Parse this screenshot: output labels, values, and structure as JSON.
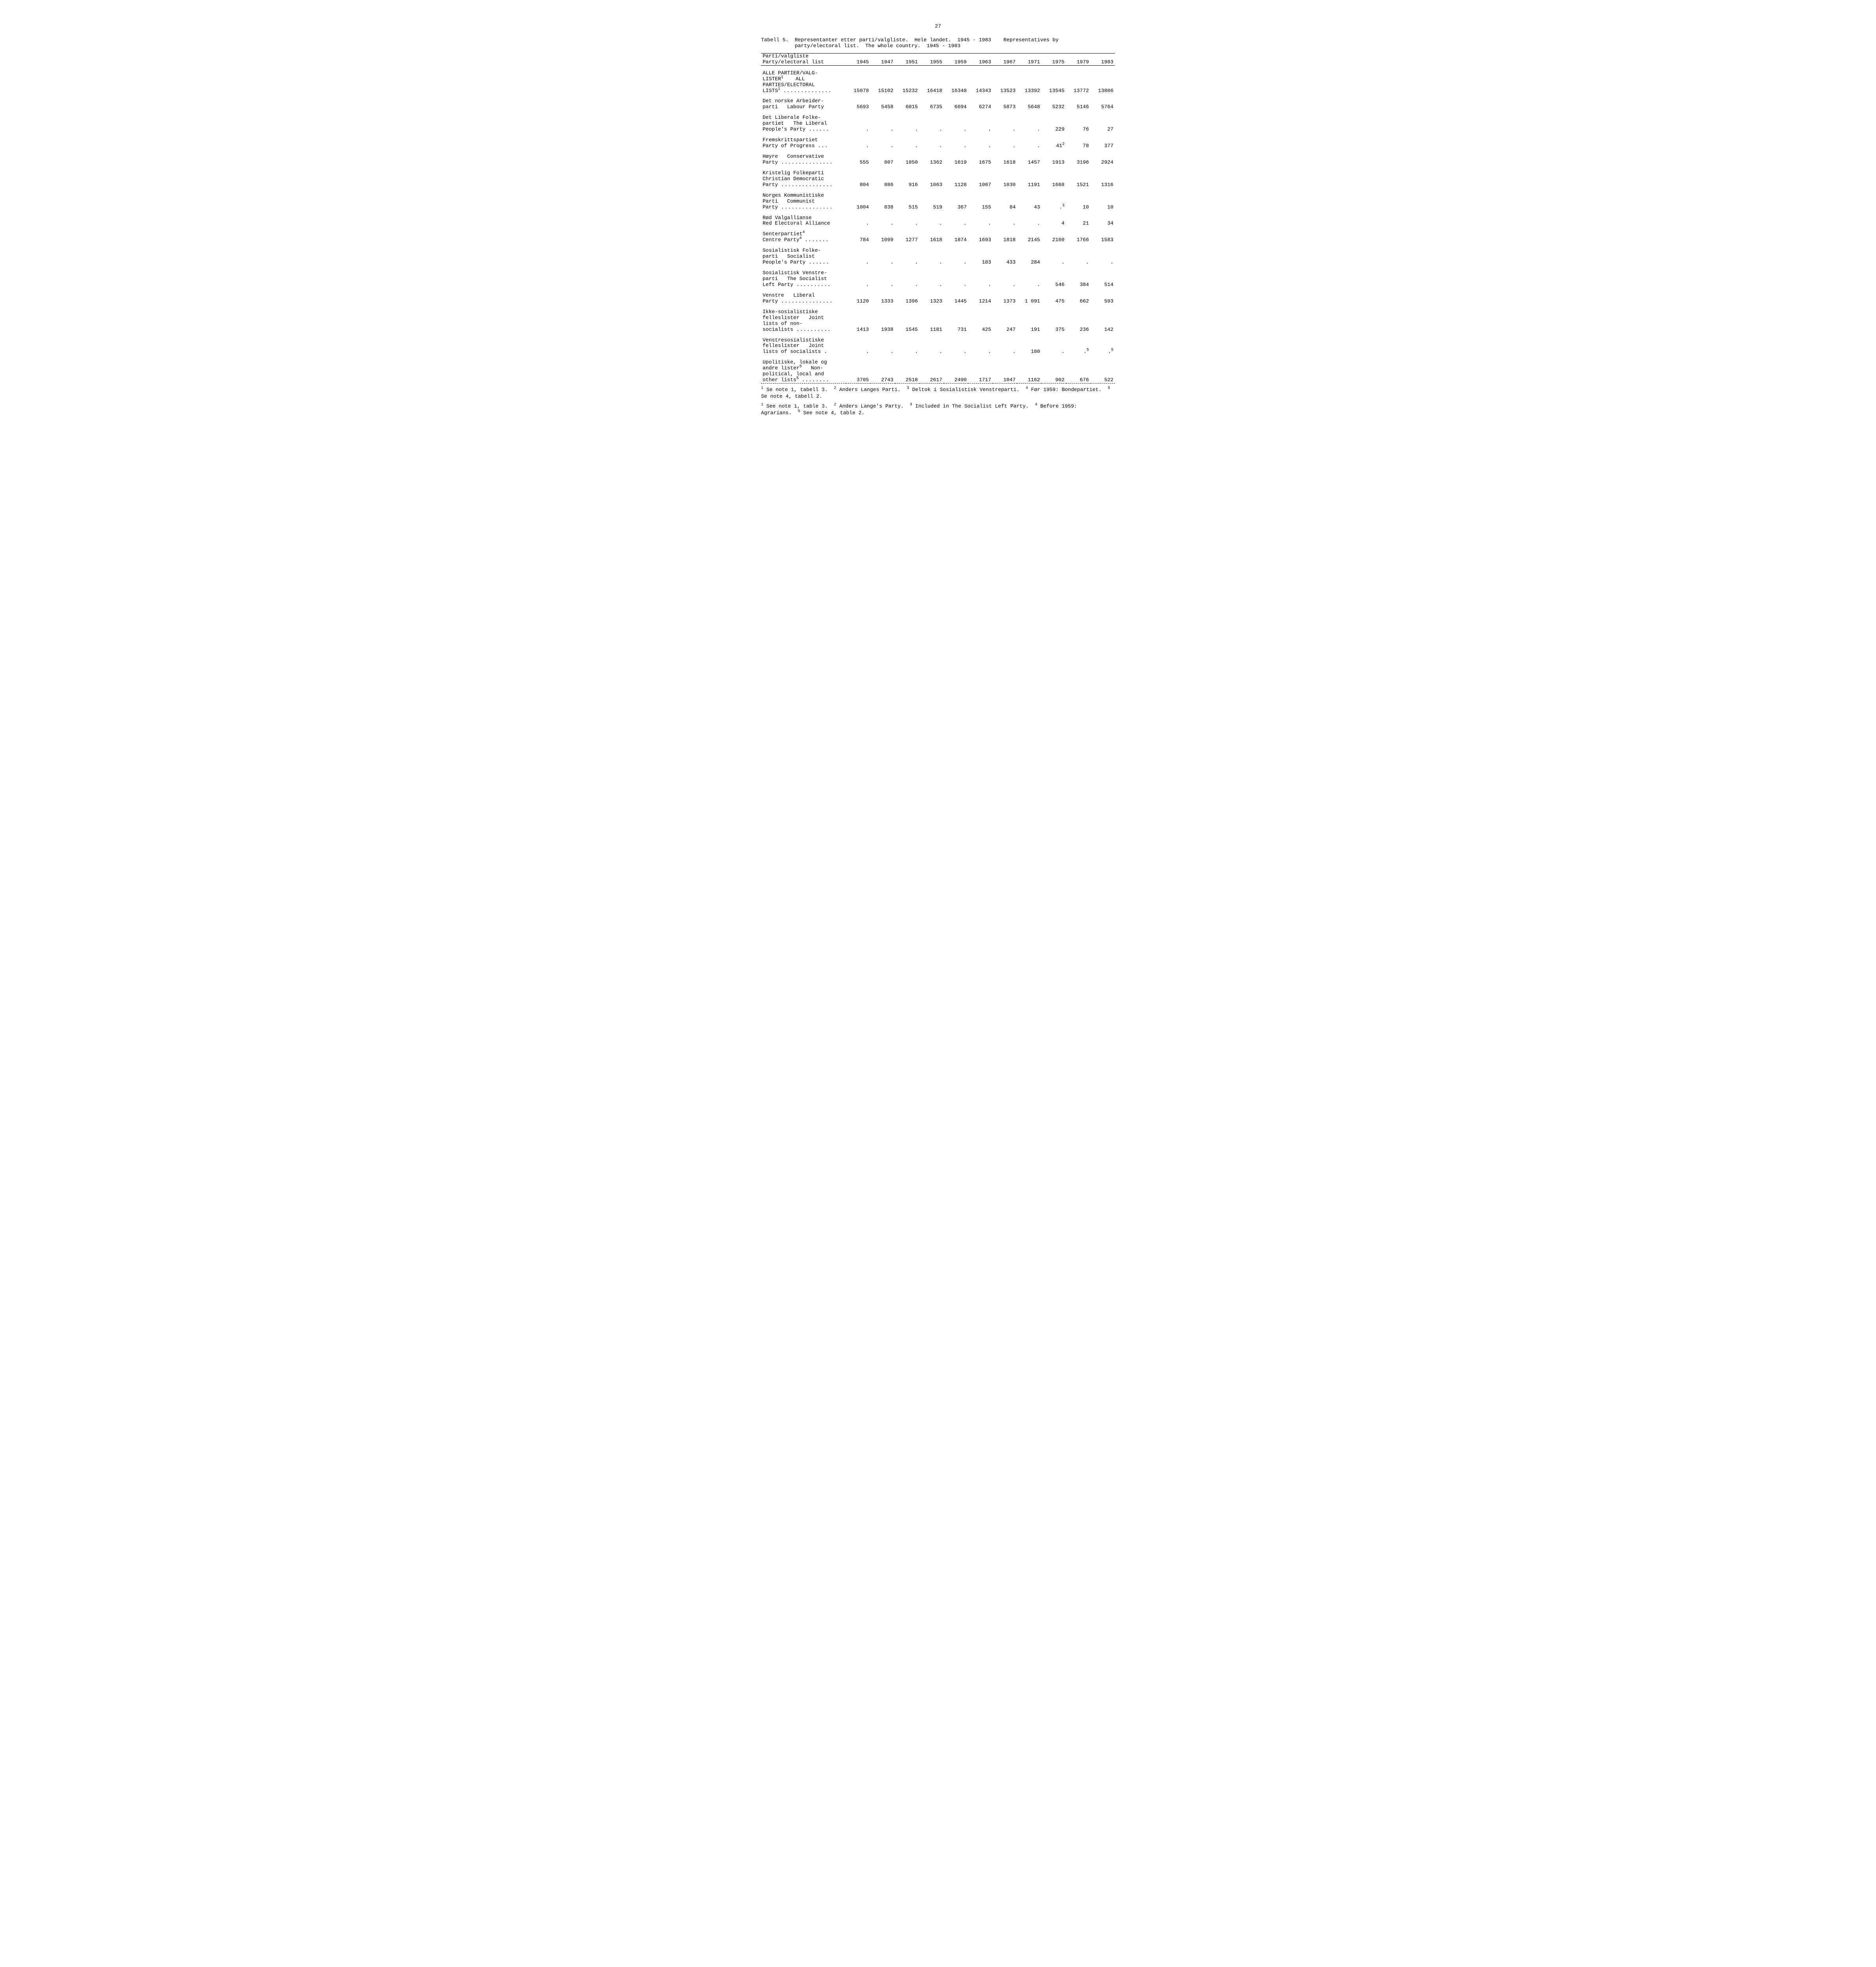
{
  "page_number": "27",
  "caption_line1": "Tabell 5.  Representanter etter parti/valgliste.  Hele landet.  1945 - 1983    Representatives by",
  "caption_line2": "           party/electoral list.  The whole country.  1945 - 1983",
  "header": {
    "label_line1": "Parti/valgliste",
    "label_line2": "Party/electoral list",
    "years": [
      "1945",
      "1947",
      "1951",
      "1955",
      "1959",
      "1963",
      "1967",
      "1971",
      "1975",
      "1979",
      "1983"
    ]
  },
  "rows": [
    {
      "label_html": "ALLE PARTIER/VALG-<br>LISTER<sup>1</sup>&nbsp;&nbsp;&nbsp;&nbsp;ALL<br>PARTIES/ELECTORAL<br>LISTS<sup>1</sup> <span class='dots'>..............</span>",
      "values": [
        "15078",
        "15102",
        "15232",
        "16418",
        "16348",
        "14343",
        "13523",
        "13392",
        "13545",
        "13772",
        "13806"
      ]
    },
    {
      "label_html": "Det norske Arbeider-<br>parti&nbsp;&nbsp;&nbsp;Labour Party",
      "values": [
        "5693",
        "5458",
        "6015",
        "6735",
        "6694",
        "6274",
        "5873",
        "5648",
        "5232",
        "5146",
        "5764"
      ]
    },
    {
      "label_html": "Det Liberale Folke-<br>partiet&nbsp;&nbsp;&nbsp;The Liberal<br>People's Party <span class='dots'>......</span>",
      "values": [
        ".",
        ".",
        ".",
        ".",
        ".",
        ".",
        ".",
        ".",
        "229",
        "76",
        "27"
      ]
    },
    {
      "label_html": "Fremskrittspartiet<br>Party of Progress <span class='dots'>...</span>",
      "values": [
        ".",
        ".",
        ".",
        ".",
        ".",
        ".",
        ".",
        ".",
        "41<sup>2</sup>",
        "78",
        "377"
      ]
    },
    {
      "label_html": "Høyre&nbsp;&nbsp;&nbsp;Conservative<br>Party <span class='dots'>...............</span>",
      "values": [
        "555",
        "807",
        "1050",
        "1362",
        "1619",
        "1675",
        "1618",
        "1457",
        "1913",
        "3196",
        "2924"
      ]
    },
    {
      "label_html": "Kristelig Folkeparti<br>Christian Democratic<br>Party <span class='dots'>...............</span>",
      "values": [
        "804",
        "886",
        "916",
        "1063",
        "1128",
        "1007",
        "1030",
        "1191",
        "1668",
        "1521",
        "1316"
      ]
    },
    {
      "label_html": "Norges Kommunistiske<br>Parti&nbsp;&nbsp;&nbsp;Communist<br>Party <span class='dots'>...............</span>",
      "values": [
        "1004",
        "838",
        "515",
        "519",
        "367",
        "155",
        "84",
        "43",
        ".<sup>3</sup>",
        "10",
        "10"
      ]
    },
    {
      "label_html": "Rød Valgallianse<br>Red Electoral Alliance",
      "values": [
        ".",
        ".",
        ".",
        ".",
        ".",
        ".",
        ".",
        ".",
        "4",
        "21",
        "34"
      ]
    },
    {
      "label_html": "Senterpartiet<sup>4</sup><br>Centre Party<sup>4</sup> <span class='dots'>.......</span>",
      "values": [
        "784",
        "1099",
        "1277",
        "1618",
        "1874",
        "1693",
        "1818",
        "2145",
        "2160",
        "1766",
        "1583"
      ]
    },
    {
      "label_html": "Sosialistisk Folke-<br>parti&nbsp;&nbsp;&nbsp;Socialist<br>People's Party <span class='dots'>......</span>",
      "values": [
        ".",
        ".",
        ".",
        ".",
        ".",
        "183",
        "433",
        "284",
        ".",
        ".",
        "."
      ]
    },
    {
      "label_html": "Sosialistisk Venstre-<br>parti&nbsp;&nbsp;&nbsp;The Socialist<br>Left Party <span class='dots'>..........</span>",
      "values": [
        ".",
        ".",
        ".",
        ".",
        ".",
        ".",
        ".",
        ".",
        "546",
        "384",
        "514"
      ]
    },
    {
      "label_html": "Venstre&nbsp;&nbsp;&nbsp;Liberal<br>Party <span class='dots'>...............</span>",
      "values": [
        "1120",
        "1333",
        "1396",
        "1323",
        "1445",
        "1214",
        "1373",
        "1 091",
        "475",
        "662",
        "593"
      ]
    },
    {
      "label_html": "Ikke-sosialistiske<br>felleslister&nbsp;&nbsp;&nbsp;Joint<br>lists of non-<br>socialists <span class='dots'>..........</span>",
      "values": [
        "1413",
        "1938",
        "1545",
        "1181",
        "731",
        "425",
        "247",
        "191",
        "375",
        "236",
        "142"
      ]
    },
    {
      "label_html": "Venstresosialistiske<br>felleslister&nbsp;&nbsp;&nbsp;Joint<br>lists of socialists .",
      "values": [
        ".",
        ".",
        ".",
        ".",
        ".",
        ".",
        ".",
        "180",
        ".",
        ".<sup>5</sup>",
        ".<sup>5</sup>"
      ]
    },
    {
      "label_html": "Upolitiske, lokale og<br>andre lister<sup>5</sup>&nbsp;&nbsp;&nbsp;Non-<br>political, local and<br>other lists<sup>5</sup> <span class='dots'>........</span>",
      "values": [
        "3705",
        "2743",
        "2518",
        "2617",
        "2490",
        "1717",
        "1047",
        "1162",
        "902",
        "676",
        "522"
      ]
    }
  ],
  "footnotes_no_html": "<sup>1</sup> Se note 1, tabell 3.&nbsp;&nbsp;<sup>2</sup> Anders Langes Parti.&nbsp;&nbsp;<sup>3</sup> Deltok i Sosialistisk Venstreparti.&nbsp;&nbsp;<sup>4</sup> Før 1959: Bondepartiet.&nbsp;&nbsp;<sup>5</sup> Se note 4, tabell 2.",
  "footnotes_en_html": "<sup>1</sup> See note 1, table 3.&nbsp;&nbsp;<sup>2</sup> Anders Lange's Party.&nbsp;&nbsp;<sup>3</sup> Included in The Socialist Left Party.&nbsp;&nbsp;<sup>4</sup> Before 1959: Agrarians.&nbsp;&nbsp;<sup>5</sup> See note 4, table 2.",
  "colwidths": {
    "label": "24%",
    "year": "6.9%"
  }
}
